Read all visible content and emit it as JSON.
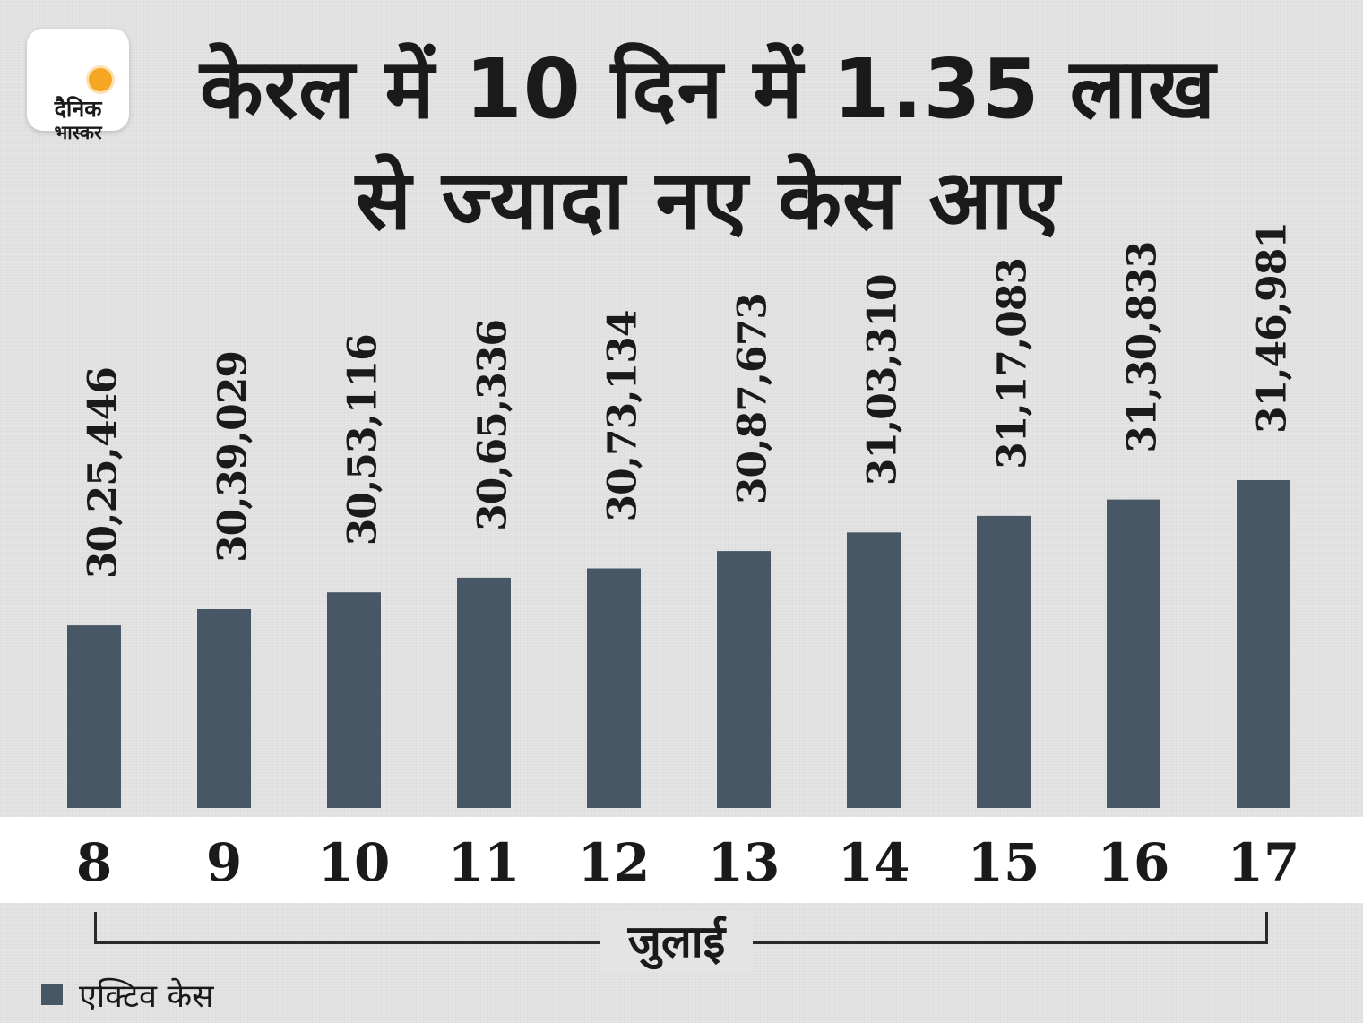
{
  "logo": {
    "line1": "दैनिक",
    "line2": "भास्कर"
  },
  "chart_data": {
    "type": "bar",
    "title": "केरल में 10 दिन में 1.35 लाख से ज्यादा नए केस आए",
    "title_lines": [
      "केरल में 10 दिन में 1.35 लाख",
      "से ज्यादा नए केस आए"
    ],
    "categories": [
      "8",
      "9",
      "10",
      "11",
      "12",
      "13",
      "14",
      "15",
      "16",
      "17"
    ],
    "x_group_label": "जुलाई",
    "series": [
      {
        "name": "एक्टिव केस",
        "values": [
          3025446,
          3039029,
          3053116,
          3065336,
          3073134,
          3087673,
          3103310,
          3117083,
          3130833,
          3146981
        ],
        "labels": [
          "30,25,446",
          "30,39,029",
          "30,53,116",
          "30,65,336",
          "30,73,134",
          "30,87,673",
          "31,03,310",
          "31,17,083",
          "31,30,833",
          "31,46,981"
        ]
      }
    ],
    "legend": [
      "एक्टिव केस"
    ],
    "legend_position": "bottom-left",
    "bar_color": "#475766",
    "grid": false
  }
}
